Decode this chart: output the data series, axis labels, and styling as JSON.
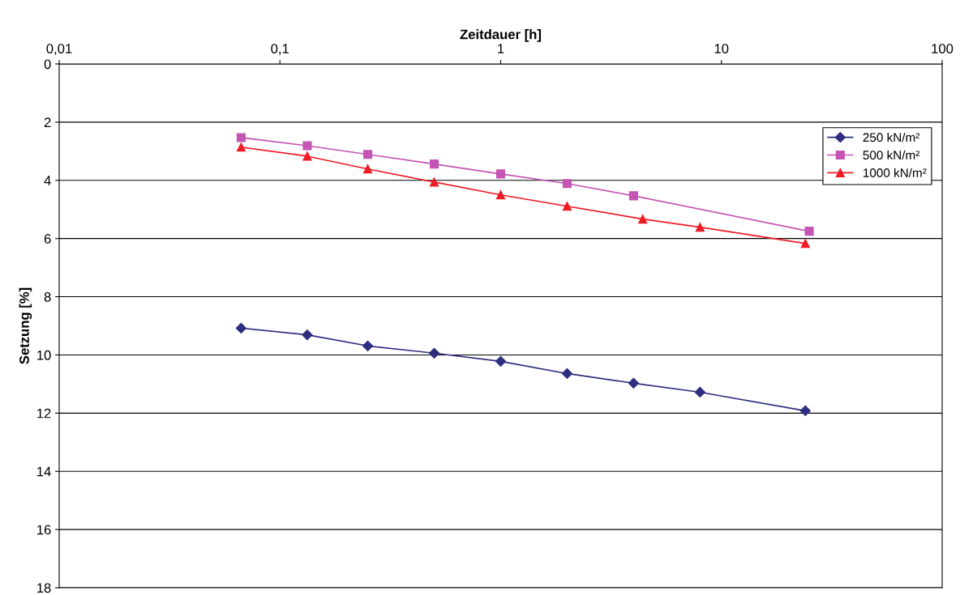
{
  "chart_data": {
    "type": "line",
    "xlabel": "Zeitdauer [h]",
    "ylabel": "Setzung [%]",
    "log": "x",
    "xlim": [
      0.01,
      100
    ],
    "xticks": [
      {
        "value": 0.01,
        "label": "0,01"
      },
      {
        "value": 0.1,
        "label": "0,1"
      },
      1,
      10,
      100
    ],
    "ylim": [
      18,
      0
    ],
    "yticks": [
      0,
      2,
      4,
      6,
      8,
      10,
      12,
      14,
      16,
      18
    ],
    "grid": "y",
    "legend": "top right",
    "series": [
      {
        "name": "250 kN/m²",
        "color": "#2e2e80",
        "marker": "diamond",
        "x": [
          0.0667,
          0.133,
          0.25,
          0.5,
          1,
          2,
          4,
          8,
          24
        ],
        "values": [
          9.08,
          9.31,
          9.69,
          9.94,
          10.22,
          10.64,
          10.97,
          11.28,
          11.92
        ]
      },
      {
        "name": "500 kN/m²",
        "color": "#c455b4",
        "marker": "square",
        "x": [
          0.0667,
          0.133,
          0.25,
          0.5,
          1,
          2,
          4,
          25
        ],
        "values": [
          2.53,
          2.81,
          3.11,
          3.44,
          3.78,
          4.11,
          4.53,
          5.75
        ]
      },
      {
        "name": "1000 kN/m²",
        "color": "#ee1c25",
        "marker": "triangle",
        "x": [
          0.0667,
          0.133,
          0.25,
          0.5,
          1,
          2,
          4.4,
          8,
          24
        ],
        "values": [
          2.86,
          3.17,
          3.61,
          4.06,
          4.5,
          4.89,
          5.33,
          5.61,
          6.17
        ]
      }
    ]
  }
}
